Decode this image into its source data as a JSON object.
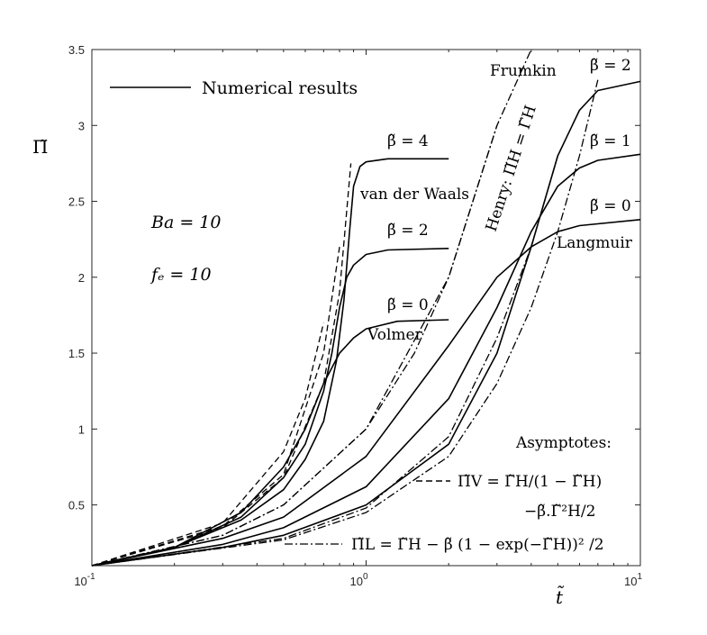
{
  "chart_data": {
    "type": "line",
    "x_scale": "log",
    "xlim": [
      0.1,
      10
    ],
    "ylim": [
      0.1,
      3.5
    ],
    "grid": false,
    "legend": "top-left",
    "xlabel": "t̃",
    "ylabel": "Π̃",
    "x_ticks": [
      {
        "value": 0.1,
        "base": "10",
        "exp": "-1"
      },
      {
        "value": 1,
        "base": "10",
        "exp": "0"
      },
      {
        "value": 10,
        "base": "10",
        "exp": "1"
      }
    ],
    "y_ticks": [
      "0.5",
      "1",
      "1.5",
      "2",
      "2.5",
      "3",
      "3.5"
    ],
    "legend_entries": [
      {
        "label": "Numerical results",
        "style": "solid"
      }
    ],
    "series": [
      {
        "key": "vdw_b4",
        "style": "solid",
        "x": [
          0.1,
          0.2,
          0.35,
          0.5,
          0.6,
          0.7,
          0.78,
          0.83,
          0.87,
          0.9,
          0.95,
          1.0,
          1.2,
          2.0
        ],
        "y": [
          0.1,
          0.22,
          0.4,
          0.6,
          0.8,
          1.05,
          1.45,
          1.85,
          2.3,
          2.6,
          2.73,
          2.76,
          2.78,
          2.78
        ]
      },
      {
        "key": "vdw_b2",
        "style": "solid",
        "x": [
          0.1,
          0.2,
          0.35,
          0.5,
          0.6,
          0.7,
          0.75,
          0.8,
          0.85,
          0.9,
          1.0,
          1.2,
          2.0
        ],
        "y": [
          0.1,
          0.22,
          0.42,
          0.68,
          0.9,
          1.25,
          1.5,
          1.8,
          2.0,
          2.08,
          2.15,
          2.18,
          2.19
        ]
      },
      {
        "key": "vdw_b0",
        "style": "solid",
        "x": [
          0.1,
          0.2,
          0.35,
          0.5,
          0.6,
          0.7,
          0.8,
          0.9,
          1.0,
          1.3,
          2.0
        ],
        "y": [
          0.1,
          0.22,
          0.45,
          0.75,
          1.0,
          1.3,
          1.5,
          1.6,
          1.66,
          1.71,
          1.72
        ]
      },
      {
        "key": "frumkin_b2",
        "style": "solid",
        "x": [
          0.1,
          0.3,
          0.5,
          1.0,
          2.0,
          3.0,
          4.0,
          5.0,
          6.0,
          7.0,
          10.0
        ],
        "y": [
          0.1,
          0.22,
          0.3,
          0.5,
          0.9,
          1.5,
          2.2,
          2.8,
          3.1,
          3.23,
          3.29
        ]
      },
      {
        "key": "frumkin_b1",
        "style": "solid",
        "x": [
          0.1,
          0.3,
          0.5,
          1.0,
          2.0,
          3.0,
          4.0,
          5.0,
          6.0,
          7.0,
          10.0
        ],
        "y": [
          0.1,
          0.24,
          0.35,
          0.62,
          1.2,
          1.8,
          2.3,
          2.6,
          2.72,
          2.77,
          2.81
        ]
      },
      {
        "key": "langmuir_b0",
        "style": "solid",
        "x": [
          0.1,
          0.3,
          0.5,
          1.0,
          2.0,
          3.0,
          4.0,
          5.0,
          6.0,
          10.0
        ],
        "y": [
          0.1,
          0.28,
          0.42,
          0.82,
          1.55,
          2.0,
          2.2,
          2.3,
          2.34,
          2.38
        ]
      },
      {
        "key": "asym_v_b4",
        "style": "dashed",
        "x": [
          0.1,
          0.3,
          0.5,
          0.7,
          0.8,
          0.88
        ],
        "y": [
          0.1,
          0.35,
          0.68,
          1.3,
          1.9,
          2.75
        ]
      },
      {
        "key": "asym_v_b2",
        "style": "dashed",
        "x": [
          0.1,
          0.3,
          0.5,
          0.7,
          0.8
        ],
        "y": [
          0.1,
          0.36,
          0.7,
          1.5,
          2.2
        ]
      },
      {
        "key": "asym_v_b0",
        "style": "dashed",
        "x": [
          0.1,
          0.3,
          0.5,
          0.6,
          0.7
        ],
        "y": [
          0.1,
          0.38,
          0.85,
          1.2,
          1.7
        ]
      },
      {
        "key": "henry",
        "style": "dashdot",
        "x": [
          0.1,
          0.3,
          0.5,
          1.0,
          2.0,
          3.0,
          4.0
        ],
        "y": [
          0.1,
          0.3,
          0.5,
          1.0,
          2.0,
          3.0,
          3.5
        ]
      },
      {
        "key": "asym_l_b2",
        "style": "dashdot",
        "x": [
          0.1,
          0.5,
          1.0,
          2.0,
          3.0,
          4.0,
          5.0,
          6.0,
          7.0
        ],
        "y": [
          0.1,
          0.27,
          0.45,
          0.82,
          1.3,
          1.8,
          2.3,
          2.8,
          3.3
        ]
      },
      {
        "key": "asym_l_b1",
        "style": "dashdot",
        "x": [
          0.1,
          0.5,
          1.0,
          2.0,
          3.0,
          4.0,
          5.0
        ],
        "y": [
          0.1,
          0.28,
          0.48,
          0.95,
          1.6,
          2.2,
          2.8
        ]
      },
      {
        "key": "asym_l_b0",
        "style": "dashdot",
        "x": [
          0.1,
          0.3,
          0.5,
          1.0,
          1.5,
          2.0,
          3.0
        ],
        "y": [
          0.1,
          0.3,
          0.5,
          1.0,
          1.5,
          2.0,
          3.0
        ]
      }
    ],
    "annotations": {
      "vdw_b4": "β̃ = 4",
      "vdw_b2": "β̃ = 2",
      "vdw_b0": "β̃ = 0",
      "van_der_waals": "van der Waals",
      "volmer": "Volmer",
      "ba": "Ba = 10",
      "fe": "fₑ = 10",
      "frumkin": "Frumkin",
      "frumkin_b2": "β̃ = 2",
      "frumkin_b1": "β̃ = 1",
      "langmuir_b0": "β̃ = 0",
      "langmuir": "Langmuir",
      "henry": "Henry: Π̃H = Γ̃H",
      "asymptotes": "Asymptotes:",
      "eq_v_line1": "Π̃V = Γ̃H/(1 − Γ̃H)",
      "eq_v_line2": "−β̃.Γ̃²H/2",
      "eq_l": "Π̃L = Γ̃H − β̃ (1 − exp(−Γ̃H))² /2"
    }
  }
}
